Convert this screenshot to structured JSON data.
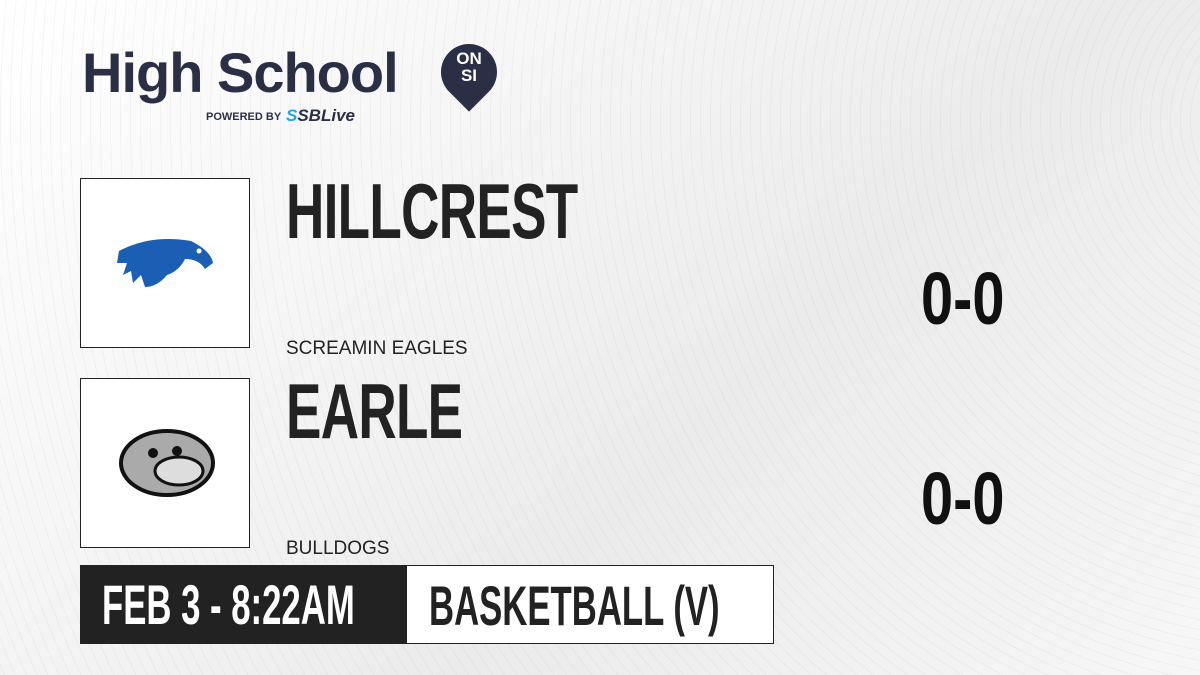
{
  "brand": {
    "title": "High School",
    "badge_top": "ON",
    "badge_bottom": "SI",
    "powered_by": "POWERED BY",
    "partner_prefix": "S",
    "partner": "SBLive"
  },
  "teams": [
    {
      "name": "HILLCREST",
      "mascot": "SCREAMIN EAGLES",
      "record": "0-0",
      "logo": "eagle-logo"
    },
    {
      "name": "EARLE",
      "mascot": "BULLDOGS",
      "record": "0-0",
      "logo": "bulldog-logo"
    }
  ],
  "game": {
    "datetime": "FEB 3 - 8:22AM",
    "sport": "BASKETBALL (V)"
  },
  "colors": {
    "brand": "#2b2f45",
    "accent": "#1ea7e8",
    "eagle": "#1a5fb4"
  }
}
